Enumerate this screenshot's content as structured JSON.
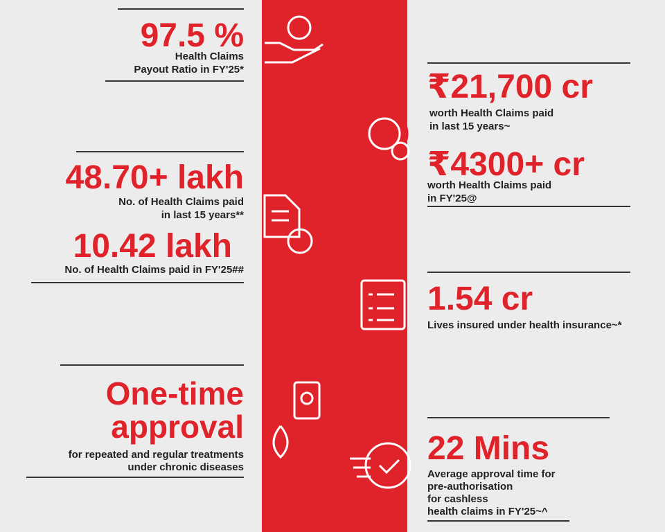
{
  "left": [
    {
      "headline": "97.5 %",
      "lines": [
        "Health Claims",
        "Payout Ratio in FY'25*"
      ]
    },
    {
      "headline": "48.70+ lakh",
      "lines": [
        "No. of Health Claims paid",
        "in last 15 years**"
      ]
    },
    {
      "headline": "10.42 lakh",
      "lines": [
        "No. of Health Claims paid in FY'25##"
      ]
    },
    {
      "headline": "One-time",
      "headline2": "approval",
      "lines": [
        "for repeated and regular treatments",
        "under chronic diseases"
      ]
    }
  ],
  "right": [
    {
      "headline": "₹21,700 cr",
      "lines": [
        "worth Health Claims paid",
        "in last 15 years~"
      ]
    },
    {
      "headline": "₹4300+ cr",
      "lines": [
        "worth Health Claims paid",
        "in FY'25@"
      ]
    },
    {
      "headline": "1.54 cr",
      "lines": [
        "Lives insured under health insurance~*"
      ]
    },
    {
      "headline": "22 Mins",
      "lines": [
        "Average approval time for",
        "pre-authorisation",
        "for cashless",
        "health claims in FY'25~^"
      ]
    }
  ]
}
